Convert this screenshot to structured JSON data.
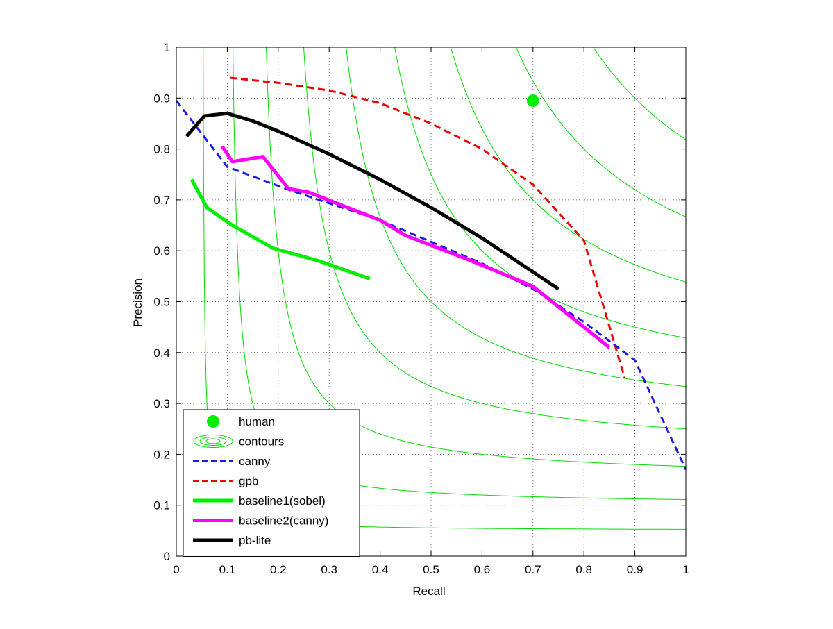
{
  "chart_data": {
    "type": "line",
    "title": "",
    "xlabel": "Recall",
    "ylabel": "Precision",
    "xlim": [
      0,
      1
    ],
    "ylim": [
      0,
      1
    ],
    "xticks": [
      0,
      0.1,
      0.2,
      0.3,
      0.4,
      0.5,
      0.6,
      0.7,
      0.8,
      0.9,
      1
    ],
    "yticks": [
      0,
      0.1,
      0.2,
      0.3,
      0.4,
      0.5,
      0.6,
      0.7,
      0.8,
      0.9,
      1
    ],
    "xtick_labels": [
      "0",
      "0.1",
      "0.2",
      "0.3",
      "0.4",
      "0.5",
      "0.6",
      "0.7",
      "0.8",
      "0.9",
      "1"
    ],
    "ytick_labels": [
      "0",
      "0.1",
      "0.2",
      "0.3",
      "0.4",
      "0.5",
      "0.6",
      "0.7",
      "0.8",
      "0.9",
      "1"
    ],
    "grid": true,
    "grid_style": "dotted",
    "legend_position": "bottom-left",
    "iso_f_contours": {
      "color": "#00dd00",
      "levels": [
        0.1,
        0.2,
        0.3,
        0.4,
        0.5,
        0.6,
        0.7,
        0.8,
        0.9
      ]
    },
    "human_point": {
      "name": "human",
      "x": 0.7,
      "y": 0.895,
      "color": "#00ee00"
    },
    "series": [
      {
        "name": "canny",
        "color": "#1a1aee",
        "style": "dashed",
        "width": "thin",
        "x": [
          0.0,
          0.1,
          0.22,
          0.4,
          0.6,
          0.7,
          0.8,
          0.9,
          1.0
        ],
        "y": [
          0.895,
          0.765,
          0.72,
          0.66,
          0.575,
          0.525,
          0.46,
          0.385,
          0.17
        ]
      },
      {
        "name": "gpb",
        "color": "#ee0000",
        "style": "dashed",
        "width": "thin",
        "x": [
          0.105,
          0.2,
          0.3,
          0.4,
          0.5,
          0.6,
          0.7,
          0.8,
          0.88
        ],
        "y": [
          0.94,
          0.93,
          0.915,
          0.89,
          0.85,
          0.8,
          0.73,
          0.62,
          0.35
        ]
      },
      {
        "name": "baseline1(sobel)",
        "color": "#00ee00",
        "style": "solid",
        "width": "thick",
        "x": [
          0.03,
          0.06,
          0.11,
          0.19,
          0.28,
          0.38
        ],
        "y": [
          0.74,
          0.685,
          0.65,
          0.605,
          0.58,
          0.545
        ]
      },
      {
        "name": "baseline2(canny)",
        "color": "#ff00ff",
        "style": "solid",
        "width": "thick",
        "x": [
          0.09,
          0.11,
          0.17,
          0.22,
          0.26,
          0.4,
          0.45,
          0.58,
          0.7,
          0.85
        ],
        "y": [
          0.805,
          0.775,
          0.785,
          0.722,
          0.715,
          0.66,
          0.63,
          0.58,
          0.53,
          0.41
        ]
      },
      {
        "name": "pb-lite",
        "color": "#000000",
        "style": "solid",
        "width": "thick",
        "x": [
          0.02,
          0.055,
          0.1,
          0.15,
          0.2,
          0.3,
          0.4,
          0.5,
          0.6,
          0.75
        ],
        "y": [
          0.825,
          0.865,
          0.87,
          0.855,
          0.835,
          0.79,
          0.74,
          0.685,
          0.625,
          0.525
        ]
      }
    ],
    "legend_entries": [
      "human",
      "contours",
      "canny",
      "gpb",
      "baseline1(sobel)",
      "baseline2(canny)",
      "pb-lite"
    ]
  }
}
